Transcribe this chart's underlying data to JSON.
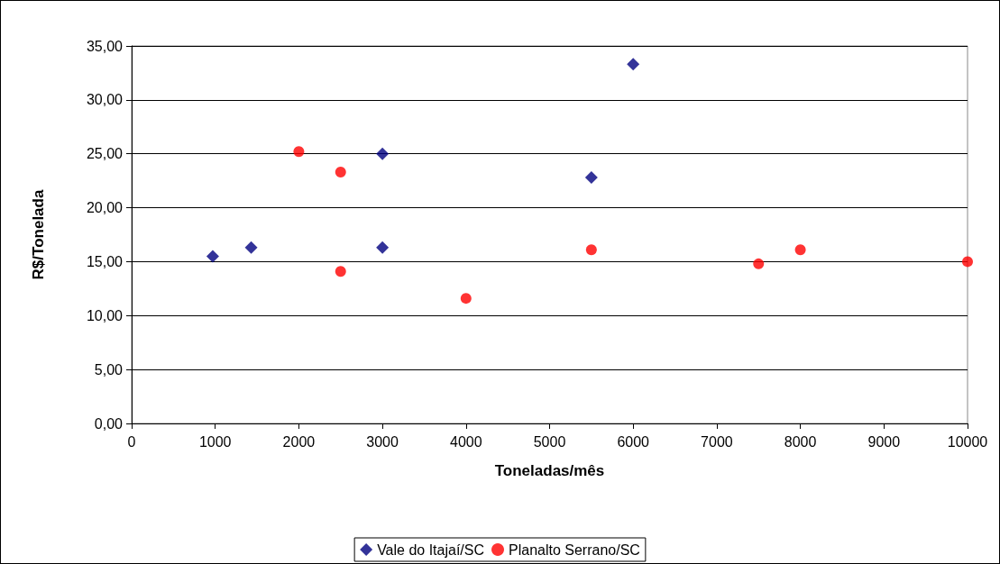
{
  "chart_data": {
    "type": "scatter",
    "xlabel": "Toneladas/mês",
    "ylabel": "R$/Tonelada",
    "xlim": [
      0,
      10000
    ],
    "xticks": [
      0,
      1000,
      2000,
      3000,
      4000,
      5000,
      6000,
      7000,
      8000,
      9000,
      10000
    ],
    "ylim": [
      0,
      35
    ],
    "yticks": [
      {
        "value": 0,
        "label": "0,00"
      },
      {
        "value": 5,
        "label": "5,00"
      },
      {
        "value": 10,
        "label": "10,00"
      },
      {
        "value": 15,
        "label": "15,00"
      },
      {
        "value": 20,
        "label": "20,00"
      },
      {
        "value": 25,
        "label": "25,00"
      },
      {
        "value": 30,
        "label": "30,00"
      },
      {
        "value": 35,
        "label": "35,00"
      }
    ],
    "grid": "y",
    "legend": "bottom",
    "series": [
      {
        "name": "Vale do Itajaí/SC",
        "color": "#000080",
        "marker": "diamond",
        "x": [
          970,
          1430,
          3000,
          3000,
          5500,
          6000
        ],
        "values": [
          15.5,
          16.3,
          25.0,
          16.3,
          22.8,
          33.3
        ]
      },
      {
        "name": "Planalto Serrano/SC",
        "color": "#ff0000",
        "marker": "circle",
        "x": [
          2000,
          2500,
          2500,
          4000,
          5500,
          7500,
          8000,
          10000
        ],
        "values": [
          25.2,
          23.3,
          14.1,
          11.6,
          16.1,
          14.8,
          16.1,
          15.0
        ]
      }
    ]
  }
}
